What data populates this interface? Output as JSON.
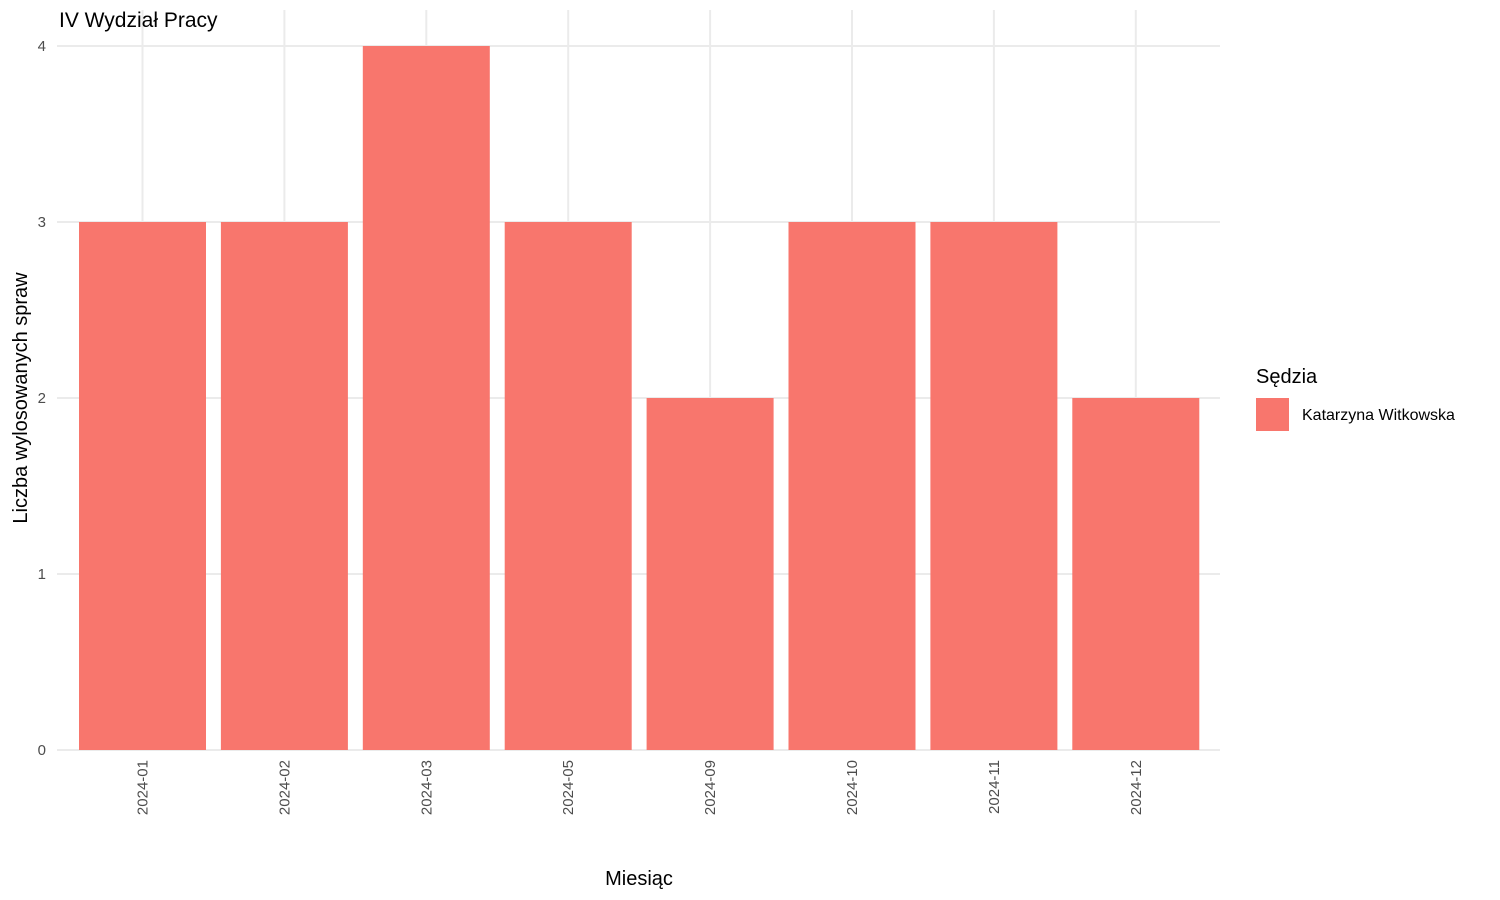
{
  "chart_data": {
    "type": "bar",
    "title": "IV Wydział Pracy",
    "xlabel": "Miesiąc",
    "ylabel": "Liczba wylosowanych spraw",
    "categories": [
      "2024-01",
      "2024-02",
      "2024-03",
      "2024-05",
      "2024-09",
      "2024-10",
      "2024-11",
      "2024-12"
    ],
    "series": [
      {
        "name": "Katarzyna Witkowska",
        "values": [
          3,
          3,
          4,
          3,
          2,
          3,
          3,
          2
        ]
      }
    ],
    "ylim": [
      0,
      4
    ],
    "yticks": [
      "0",
      "1",
      "2",
      "3",
      "4"
    ],
    "grid": true,
    "legend_position": "right",
    "legend_title": "Sędzia",
    "colors": {
      "series": "#F8766D",
      "grid": "#EBEBEB",
      "tick_text": "#4D4D4D"
    }
  }
}
